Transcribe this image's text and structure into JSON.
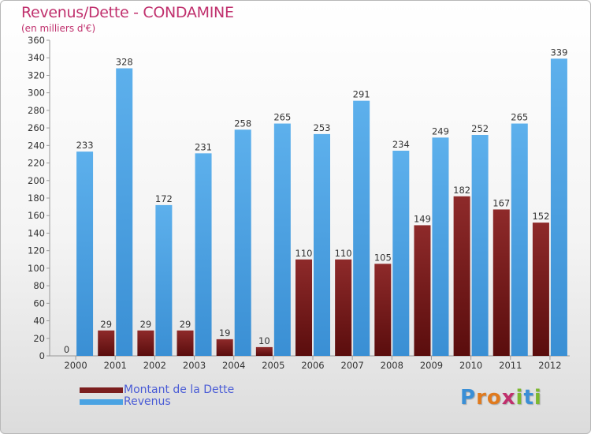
{
  "chart_data": {
    "type": "bar",
    "title": "Revenus/Dette - CONDAMINE",
    "subtitle": "(en milliers d'€)",
    "categories": [
      "2000",
      "2001",
      "2002",
      "2003",
      "2004",
      "2005",
      "2006",
      "2007",
      "2008",
      "2009",
      "2010",
      "2011",
      "2012"
    ],
    "series": [
      {
        "name": "Montant de la Dette",
        "color": "#7b1e1e",
        "values": [
          0,
          29,
          29,
          29,
          19,
          10,
          110,
          110,
          105,
          149,
          182,
          167,
          152
        ]
      },
      {
        "name": "Revenus",
        "color": "#4aa3e3",
        "values": [
          233,
          328,
          172,
          231,
          258,
          265,
          253,
          291,
          234,
          249,
          252,
          265,
          339
        ]
      }
    ],
    "ylim": [
      0,
      360
    ],
    "ytick_step": 20,
    "grid": false,
    "legend_position": "bottom-left"
  },
  "logo": {
    "letters": [
      {
        "ch": "P",
        "color": "#3a8fd6"
      },
      {
        "ch": "r",
        "color": "#e07a1e"
      },
      {
        "ch": "o",
        "color": "#e07a1e"
      },
      {
        "ch": "x",
        "color": "#c0306d"
      },
      {
        "ch": "i",
        "color": "#7cb82f"
      },
      {
        "ch": "t",
        "color": "#3a8fd6"
      },
      {
        "ch": "i",
        "color": "#7cb82f"
      }
    ]
  }
}
